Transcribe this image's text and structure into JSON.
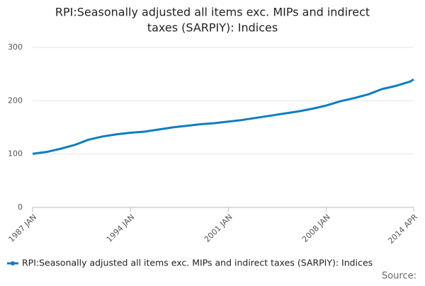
{
  "chart_data": {
    "type": "line",
    "title": [
      "RPI:Seasonally adjusted all items exc. MIPs and indirect",
      "taxes (SARPIY): Indices"
    ],
    "x": [
      "1987-01",
      "1988-01",
      "1989-01",
      "1990-01",
      "1991-01",
      "1992-01",
      "1993-01",
      "1994-01",
      "1995-01",
      "1996-01",
      "1997-01",
      "1998-01",
      "1999-01",
      "2000-01",
      "2001-01",
      "2002-01",
      "2003-01",
      "2004-01",
      "2005-01",
      "2006-01",
      "2007-01",
      "2008-01",
      "2009-01",
      "2010-01",
      "2011-01",
      "2012-01",
      "2013-01",
      "2014-01",
      "2014-04"
    ],
    "xlim": [
      "1987-01",
      "2014-04"
    ],
    "xticks": [
      {
        "value": "1987-01",
        "label": "1987 JAN"
      },
      {
        "value": "1994-01",
        "label": "1994 JAN"
      },
      {
        "value": "2001-01",
        "label": "2001 JAN"
      },
      {
        "value": "2008-01",
        "label": "2008 JAN"
      },
      {
        "value": "2014-04",
        "label": "2014 APR"
      }
    ],
    "series": [
      {
        "name": "RPI:Seasonally adjusted all items exc. MIPs and indirect taxes (SARPIY): Indices",
        "color": "#0d7ec1",
        "values": [
          100.5,
          104,
          110,
          117,
          127,
          133,
          137,
          140,
          142,
          146,
          150,
          153,
          156,
          158,
          161,
          164,
          168,
          172,
          176,
          180,
          185,
          191,
          199,
          205,
          212,
          222,
          228,
          236,
          240
        ]
      }
    ],
    "ylim": [
      0,
      300
    ],
    "yticks": [
      0,
      100,
      200,
      300
    ],
    "grid": true,
    "legend": "bottom",
    "source": "Source:"
  }
}
